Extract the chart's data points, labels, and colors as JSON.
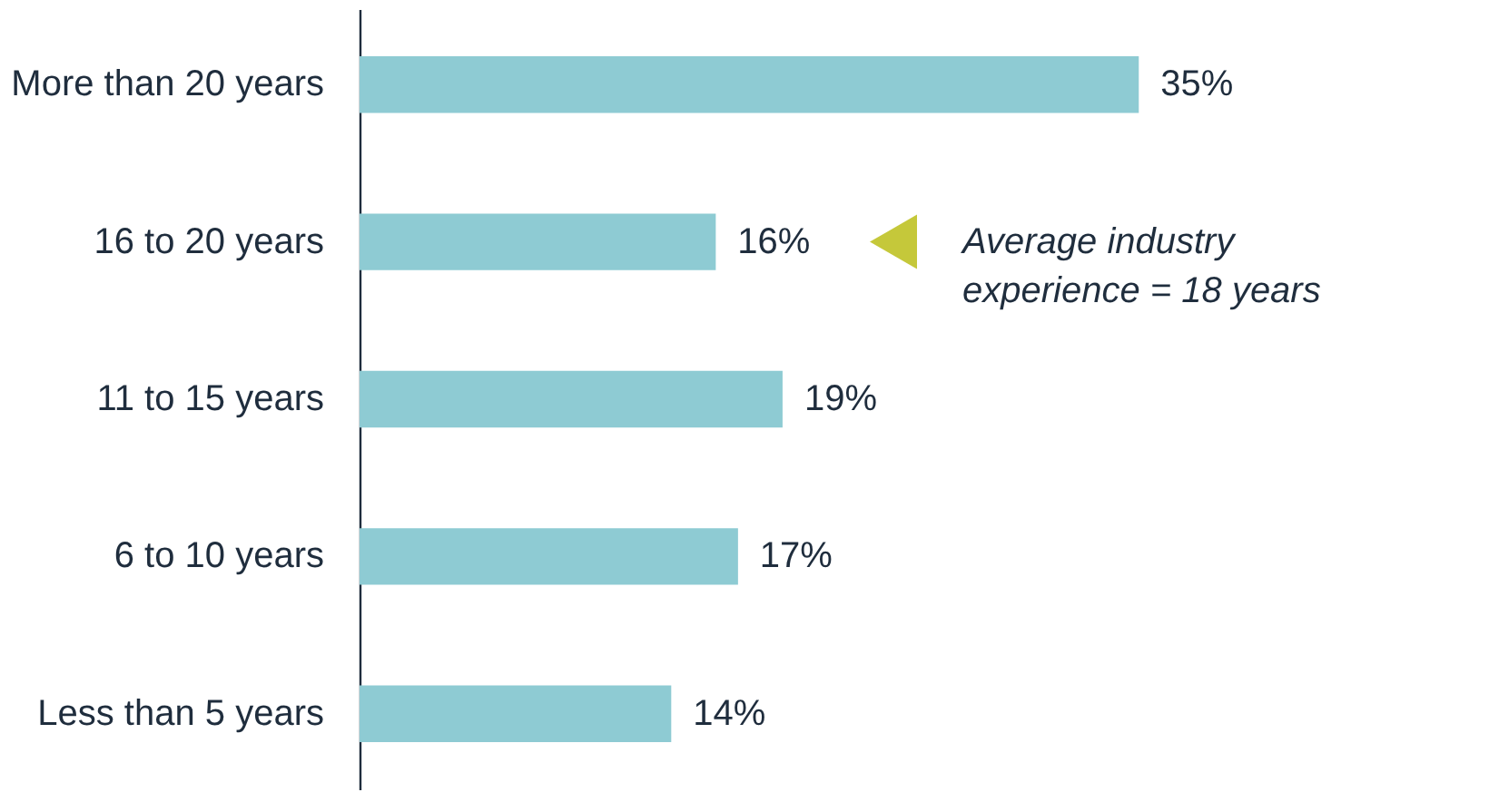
{
  "chart_data": {
    "type": "bar",
    "orientation": "horizontal",
    "categories": [
      "More than 20 years",
      "16 to 20 years",
      "11 to 15 years",
      "6 to 10 years",
      "Less than 5 years"
    ],
    "values": [
      35,
      16,
      19,
      17,
      14
    ],
    "value_labels": [
      "35%",
      "16%",
      "19%",
      "17%",
      "14%"
    ],
    "color": "#8ecbd3",
    "annotations": [
      "Average industry\nexperience = 18 years"
    ],
    "grid": false
  }
}
